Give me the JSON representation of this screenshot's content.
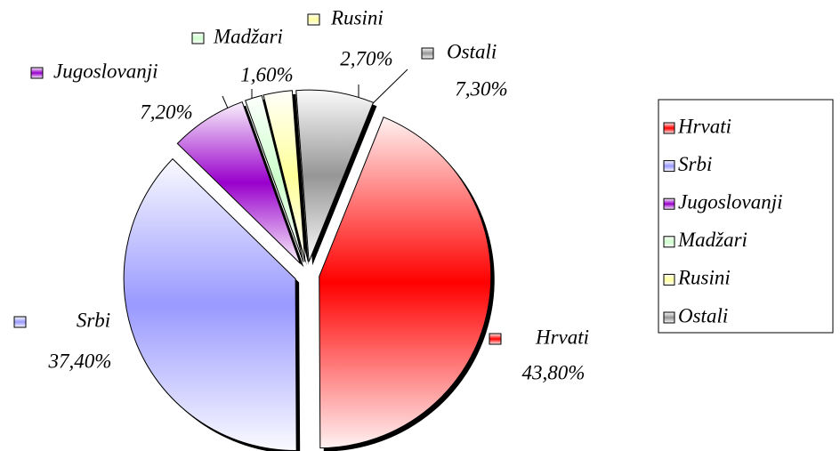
{
  "chart_data": {
    "type": "pie",
    "categories": [
      "Hrvati",
      "Srbi",
      "Jugoslovanji",
      "Madžari",
      "Rusini",
      "Ostali"
    ],
    "values": [
      43.8,
      37.4,
      7.2,
      1.6,
      2.7,
      7.3
    ],
    "value_labels": [
      "43,80%",
      "37,40%",
      "7,20%",
      "1,60%",
      "2,70%",
      "7,30%"
    ],
    "colors": [
      "#ff0000",
      "#9999ff",
      "#9900cc",
      "#ccffcc",
      "#ffff99",
      "#969696"
    ],
    "legend": "right"
  }
}
